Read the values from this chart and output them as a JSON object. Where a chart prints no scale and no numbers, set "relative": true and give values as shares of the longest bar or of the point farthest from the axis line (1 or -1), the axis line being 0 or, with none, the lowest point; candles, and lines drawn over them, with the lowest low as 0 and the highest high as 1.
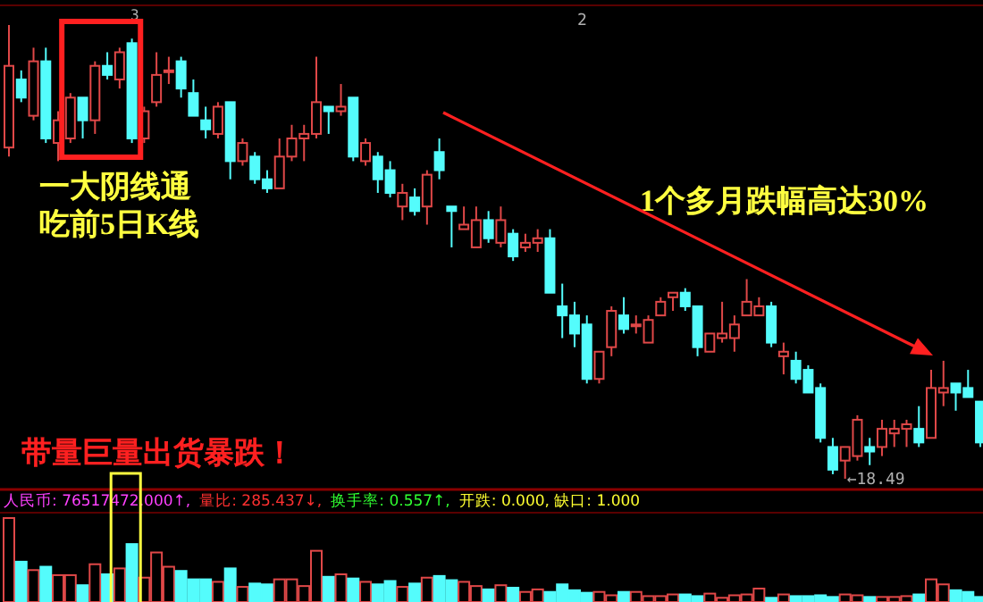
{
  "chart_data": [
    {
      "type": "candlestick",
      "relative": true,
      "categories": [
        null,
        null,
        null,
        null,
        null,
        null,
        null,
        null,
        null,
        null,
        null,
        null,
        null,
        null,
        null,
        null,
        null,
        null,
        null,
        null,
        null,
        null,
        null,
        null,
        null,
        null,
        null,
        null,
        null,
        null,
        null,
        null,
        null,
        null,
        null,
        null,
        null,
        null,
        null,
        null,
        null,
        null,
        null,
        null,
        null,
        null,
        null,
        null,
        null,
        null,
        null,
        null,
        null,
        null,
        null,
        null,
        null,
        null,
        null,
        null,
        null,
        null,
        null,
        null,
        null,
        null,
        null,
        null,
        null,
        null,
        null,
        null,
        null,
        null,
        null,
        null,
        null,
        null,
        null,
        null
      ],
      "ohlc": [
        [
          0.73,
          1.0,
          0.71,
          0.91
        ],
        [
          0.88,
          0.9,
          0.83,
          0.84
        ],
        [
          0.8,
          0.95,
          0.79,
          0.92
        ],
        [
          0.92,
          0.95,
          0.74,
          0.75
        ],
        [
          0.74,
          0.81,
          0.7,
          0.79
        ],
        [
          0.75,
          0.85,
          0.74,
          0.84
        ],
        [
          0.84,
          0.84,
          0.75,
          0.79
        ],
        [
          0.79,
          0.92,
          0.76,
          0.91
        ],
        [
          0.91,
          0.94,
          0.88,
          0.89
        ],
        [
          0.88,
          0.95,
          0.86,
          0.94
        ],
        [
          0.96,
          0.97,
          0.74,
          0.75
        ],
        [
          0.75,
          0.82,
          0.74,
          0.81
        ],
        [
          0.83,
          0.94,
          0.82,
          0.89
        ],
        [
          0.9,
          0.93,
          0.87,
          0.9
        ],
        [
          0.92,
          0.93,
          0.84,
          0.86
        ],
        [
          0.85,
          0.88,
          0.8,
          0.8
        ],
        [
          0.79,
          0.82,
          0.75,
          0.77
        ],
        [
          0.76,
          0.83,
          0.75,
          0.82
        ],
        [
          0.83,
          0.83,
          0.66,
          0.7
        ],
        [
          0.7,
          0.75,
          0.69,
          0.74
        ],
        [
          0.71,
          0.72,
          0.65,
          0.66
        ],
        [
          0.66,
          0.68,
          0.63,
          0.64
        ],
        [
          0.64,
          0.75,
          0.64,
          0.71
        ],
        [
          0.71,
          0.78,
          0.7,
          0.75
        ],
        [
          0.75,
          0.78,
          0.7,
          0.76
        ],
        [
          0.76,
          0.93,
          0.75,
          0.83
        ],
        [
          0.82,
          0.82,
          0.76,
          0.81
        ],
        [
          0.81,
          0.87,
          0.8,
          0.82
        ],
        [
          0.84,
          0.84,
          0.7,
          0.71
        ],
        [
          0.7,
          0.75,
          0.69,
          0.74
        ],
        [
          0.71,
          0.72,
          0.63,
          0.66
        ],
        [
          0.68,
          0.7,
          0.62,
          0.63
        ],
        [
          0.6,
          0.65,
          0.57,
          0.63
        ],
        [
          0.62,
          0.64,
          0.58,
          0.59
        ],
        [
          0.6,
          0.68,
          0.56,
          0.67
        ],
        [
          0.72,
          0.75,
          0.66,
          0.68
        ],
        [
          0.6,
          0.6,
          0.51,
          0.59
        ],
        [
          0.55,
          0.6,
          0.55,
          0.56
        ],
        [
          0.51,
          0.6,
          0.51,
          0.57
        ],
        [
          0.57,
          0.59,
          0.52,
          0.53
        ],
        [
          0.52,
          0.6,
          0.51,
          0.57
        ],
        [
          0.54,
          0.55,
          0.48,
          0.49
        ],
        [
          0.51,
          0.54,
          0.5,
          0.52
        ],
        [
          0.52,
          0.55,
          0.5,
          0.53
        ],
        [
          0.53,
          0.55,
          0.41,
          0.41
        ],
        [
          0.38,
          0.43,
          0.31,
          0.36
        ],
        [
          0.36,
          0.39,
          0.29,
          0.32
        ],
        [
          0.34,
          0.36,
          0.21,
          0.22
        ],
        [
          0.22,
          0.28,
          0.21,
          0.28
        ],
        [
          0.29,
          0.38,
          0.27,
          0.37
        ],
        [
          0.36,
          0.4,
          0.32,
          0.33
        ],
        [
          0.34,
          0.36,
          0.32,
          0.34
        ],
        [
          0.3,
          0.36,
          0.3,
          0.35
        ],
        [
          0.36,
          0.4,
          0.36,
          0.39
        ],
        [
          0.4,
          0.41,
          0.37,
          0.41
        ],
        [
          0.41,
          0.42,
          0.37,
          0.38
        ],
        [
          0.38,
          0.38,
          0.27,
          0.29
        ],
        [
          0.28,
          0.32,
          0.28,
          0.32
        ],
        [
          0.31,
          0.39,
          0.3,
          0.32
        ],
        [
          0.31,
          0.36,
          0.28,
          0.34
        ],
        [
          0.36,
          0.44,
          0.36,
          0.39
        ],
        [
          0.36,
          0.4,
          0.36,
          0.38
        ],
        [
          0.38,
          0.39,
          0.29,
          0.3
        ],
        [
          0.27,
          0.3,
          0.23,
          0.28
        ],
        [
          0.26,
          0.28,
          0.21,
          0.22
        ],
        [
          0.24,
          0.25,
          0.19,
          0.19
        ],
        [
          0.2,
          0.21,
          0.08,
          0.09
        ],
        [
          0.07,
          0.09,
          0.01,
          0.02
        ],
        [
          0.04,
          0.07,
          0.0,
          0.07
        ],
        [
          0.05,
          0.14,
          0.04,
          0.13
        ],
        [
          0.07,
          0.09,
          0.03,
          0.06
        ],
        [
          0.07,
          0.13,
          0.05,
          0.11
        ],
        [
          0.1,
          0.13,
          0.07,
          0.11
        ],
        [
          0.11,
          0.13,
          0.07,
          0.12
        ],
        [
          0.11,
          0.16,
          0.07,
          0.08
        ],
        [
          0.09,
          0.24,
          0.09,
          0.2
        ],
        [
          0.19,
          0.26,
          0.16,
          0.2
        ],
        [
          0.21,
          0.21,
          0.15,
          0.19
        ],
        [
          0.2,
          0.24,
          0.18,
          0.18
        ],
        [
          0.17,
          0.17,
          0.07,
          0.08
        ]
      ],
      "colors": [
        "#e04848",
        "#54fcfc",
        "#e04848",
        "#54fcfc",
        "#e04848",
        "#e04848",
        "#54fcfc",
        "#e04848",
        "#54fcfc",
        "#e04848",
        "#54fcfc",
        "#e04848",
        "#e04848",
        "#e04848",
        "#54fcfc",
        "#54fcfc",
        "#54fcfc",
        "#e04848",
        "#54fcfc",
        "#e04848",
        "#54fcfc",
        "#54fcfc",
        "#e04848",
        "#e04848",
        "#e04848",
        "#e04848",
        "#54fcfc",
        "#e04848",
        "#54fcfc",
        "#e04848",
        "#54fcfc",
        "#54fcfc",
        "#e04848",
        "#54fcfc",
        "#e04848",
        "#54fcfc",
        "#54fcfc",
        "#e04848",
        "#e04848",
        "#54fcfc",
        "#e04848",
        "#54fcfc",
        "#e04848",
        "#e04848",
        "#54fcfc",
        "#54fcfc",
        "#54fcfc",
        "#54fcfc",
        "#e04848",
        "#e04848",
        "#54fcfc",
        "#e04848",
        "#e04848",
        "#e04848",
        "#e04848",
        "#54fcfc",
        "#54fcfc",
        "#e04848",
        "#e04848",
        "#e04848",
        "#e04848",
        "#e04848",
        "#54fcfc",
        "#e04848",
        "#54fcfc",
        "#54fcfc",
        "#54fcfc",
        "#54fcfc",
        "#e04848",
        "#e04848",
        "#54fcfc",
        "#e04848",
        "#e04848",
        "#e04848",
        "#54fcfc",
        "#e04848",
        "#e04848",
        "#54fcfc",
        "#54fcfc",
        "#54fcfc"
      ],
      "annotations": [
        "一大阴线通",
        "吃前5日K线",
        "1个多月跌幅高达30%",
        "带量巨量出货暴跌！",
        "3",
        "2",
        "←18.49"
      ]
    },
    {
      "type": "bar",
      "relative": true,
      "categories": [
        null,
        null,
        null,
        null,
        null,
        null,
        null,
        null,
        null,
        null,
        null,
        null,
        null,
        null,
        null,
        null,
        null,
        null,
        null,
        null,
        null,
        null,
        null,
        null,
        null,
        null,
        null,
        null,
        null,
        null,
        null,
        null,
        null,
        null,
        null,
        null,
        null,
        null,
        null,
        null,
        null,
        null,
        null,
        null,
        null,
        null,
        null,
        null,
        null,
        null,
        null,
        null,
        null,
        null,
        null,
        null,
        null,
        null,
        null,
        null,
        null,
        null,
        null,
        null,
        null,
        null,
        null,
        null,
        null,
        null,
        null,
        null,
        null,
        null,
        null,
        null,
        null,
        null,
        null,
        null
      ],
      "values": [
        1.0,
        0.48,
        0.38,
        0.42,
        0.32,
        0.32,
        0.2,
        0.45,
        0.33,
        0.4,
        0.69,
        0.29,
        0.59,
        0.42,
        0.37,
        0.27,
        0.27,
        0.24,
        0.4,
        0.18,
        0.22,
        0.21,
        0.27,
        0.27,
        0.19,
        0.61,
        0.3,
        0.33,
        0.28,
        0.24,
        0.21,
        0.25,
        0.18,
        0.22,
        0.29,
        0.31,
        0.26,
        0.24,
        0.19,
        0.15,
        0.2,
        0.17,
        0.12,
        0.15,
        0.12,
        0.21,
        0.14,
        0.11,
        0.12,
        0.08,
        0.12,
        0.12,
        0.07,
        0.07,
        0.09,
        0.09,
        0.07,
        0.1,
        0.05,
        0.08,
        0.09,
        0.16,
        0.05,
        0.09,
        0.07,
        0.07,
        0.08,
        0.06,
        0.09,
        0.08,
        0.06,
        0.06,
        0.06,
        0.07,
        0.09,
        0.27,
        0.21,
        0.14,
        0.12,
        0.06
      ],
      "colors": [
        "#e04848",
        "#54fcfc",
        "#e04848",
        "#54fcfc",
        "#e04848",
        "#e04848",
        "#54fcfc",
        "#e04848",
        "#54fcfc",
        "#e04848",
        "#54fcfc",
        "#e04848",
        "#e04848",
        "#e04848",
        "#54fcfc",
        "#54fcfc",
        "#54fcfc",
        "#e04848",
        "#54fcfc",
        "#e04848",
        "#54fcfc",
        "#54fcfc",
        "#e04848",
        "#e04848",
        "#e04848",
        "#e04848",
        "#54fcfc",
        "#e04848",
        "#54fcfc",
        "#e04848",
        "#54fcfc",
        "#54fcfc",
        "#e04848",
        "#54fcfc",
        "#e04848",
        "#54fcfc",
        "#54fcfc",
        "#e04848",
        "#e04848",
        "#54fcfc",
        "#e04848",
        "#54fcfc",
        "#e04848",
        "#e04848",
        "#54fcfc",
        "#54fcfc",
        "#54fcfc",
        "#54fcfc",
        "#e04848",
        "#e04848",
        "#54fcfc",
        "#e04848",
        "#e04848",
        "#e04848",
        "#e04848",
        "#54fcfc",
        "#54fcfc",
        "#e04848",
        "#e04848",
        "#e04848",
        "#e04848",
        "#e04848",
        "#54fcfc",
        "#e04848",
        "#54fcfc",
        "#54fcfc",
        "#54fcfc",
        "#54fcfc",
        "#e04848",
        "#e04848",
        "#54fcfc",
        "#e04848",
        "#e04848",
        "#e04848",
        "#54fcfc",
        "#e04848",
        "#e04848",
        "#54fcfc",
        "#54fcfc",
        "#54fcfc"
      ],
      "annotations": [
        "人民币: 76517472.000↑,",
        "量比: 285.437↓,",
        "换手率: 0.557↑,",
        "开跌: 0.000, 缺口: 1.000"
      ]
    }
  ]
}
